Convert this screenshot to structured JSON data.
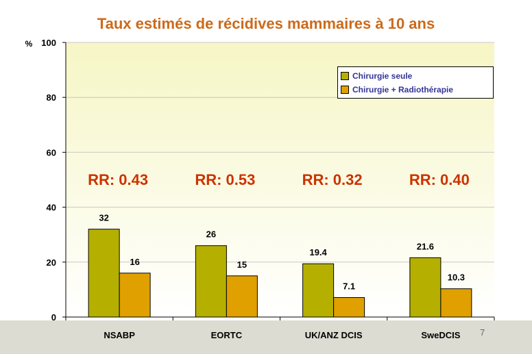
{
  "chart_data": {
    "type": "bar",
    "title": "Taux estimés de récidives mammaires à 10 ans",
    "ylabel": "%",
    "xlabel": "",
    "ylim": [
      0,
      100
    ],
    "yticks": [
      0,
      20,
      40,
      60,
      80,
      100
    ],
    "categories": [
      "NSABP",
      "EORTC",
      "UK/ANZ  DCIS",
      "SweDCIS"
    ],
    "series": [
      {
        "name": "Chirurgie  seule",
        "values": [
          32,
          26,
          19.4,
          21.6
        ],
        "value_labels": [
          "32",
          "26",
          "19.4",
          "21.6"
        ],
        "color": "#b5b000"
      },
      {
        "name": "Chirurgie  + Radiothérapie",
        "values": [
          16,
          15,
          7.1,
          10.3
        ],
        "value_labels": [
          "16",
          "15",
          "7.1",
          "10.3"
        ],
        "color": "#e0a000"
      }
    ],
    "annotations": [
      "RR: 0.43",
      "RR: 0.53",
      "RR: 0.32",
      "RR: 0.40"
    ],
    "grid": true,
    "legend_position": "top-right"
  },
  "page_number": "7"
}
